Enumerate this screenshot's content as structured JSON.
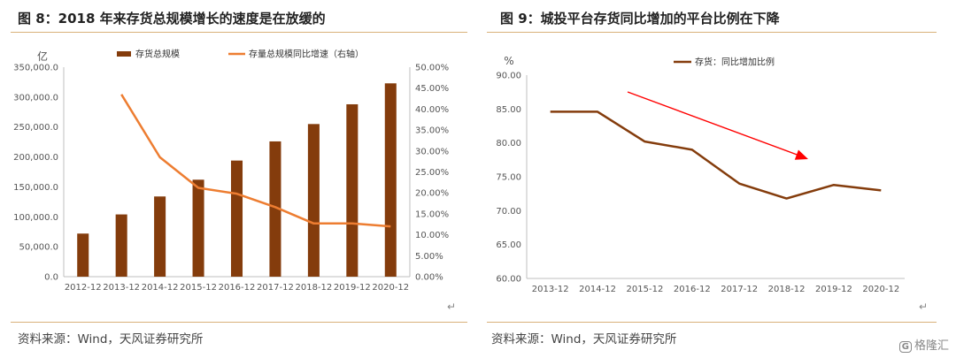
{
  "left": {
    "title": "图 8：2018 年来存货总规模增长的速度是在放缓的",
    "source": "资料来源：Wind，天风证券研究所",
    "return_mark": "↵"
  },
  "right": {
    "title": "图 9：城投平台存货同比增加的平台比例在下降",
    "source": "资料来源：Wind，天风证券研究所",
    "return_mark": "↵"
  },
  "watermark": {
    "logo": "G",
    "text": "格隆汇"
  },
  "chart_data": [
    {
      "type": "bar+line",
      "title": "",
      "ylabel_left": "亿",
      "categories": [
        "2012-12",
        "2013-12",
        "2014-12",
        "2015-12",
        "2016-12",
        "2017-12",
        "2018-12",
        "2019-12",
        "2020-12"
      ],
      "left_axis": {
        "min": 0,
        "max": 350000,
        "step": 50000,
        "ticks": [
          "0.0",
          "50,000.0",
          "100,000.0",
          "150,000.0",
          "200,000.0",
          "250,000.0",
          "300,000.0",
          "350,000.0"
        ]
      },
      "right_axis": {
        "min": 0,
        "max": 50,
        "step": 5,
        "ticks": [
          "0.00%",
          "5.00%",
          "10.00%",
          "15.00%",
          "20.00%",
          "25.00%",
          "30.00%",
          "35.00%",
          "40.00%",
          "45.00%",
          "50.00%"
        ]
      },
      "series": [
        {
          "name": "存货总规模",
          "kind": "bar",
          "axis": "left",
          "color": "#843c0c",
          "values": [
            72000,
            104000,
            134000,
            162000,
            194000,
            226000,
            255000,
            288000,
            323000
          ]
        },
        {
          "name": "存量总规模同比增速（右轴）",
          "kind": "line",
          "axis": "right",
          "color": "#ed7d31",
          "values": [
            null,
            43.5,
            28.5,
            21.2,
            19.8,
            16.6,
            12.7,
            12.7,
            12.0
          ]
        }
      ],
      "legend_position": "top"
    },
    {
      "type": "line",
      "title": "",
      "ylabel": "%",
      "categories": [
        "2013-12",
        "2014-12",
        "2015-12",
        "2016-12",
        "2017-12",
        "2018-12",
        "2019-12",
        "2020-12"
      ],
      "y_axis": {
        "min": 60,
        "max": 90,
        "step": 5,
        "ticks": [
          "60.00",
          "65.00",
          "70.00",
          "75.00",
          "80.00",
          "85.00",
          "90.00"
        ]
      },
      "series": [
        {
          "name": "存货：同比增加比例",
          "color": "#843c0c",
          "values": [
            84.6,
            84.6,
            80.2,
            79.0,
            74.0,
            71.8,
            73.8,
            73.0
          ]
        }
      ],
      "annotation": {
        "type": "arrow",
        "color": "#ff0000",
        "meaning": "downward trend"
      },
      "legend_position": "top"
    }
  ]
}
